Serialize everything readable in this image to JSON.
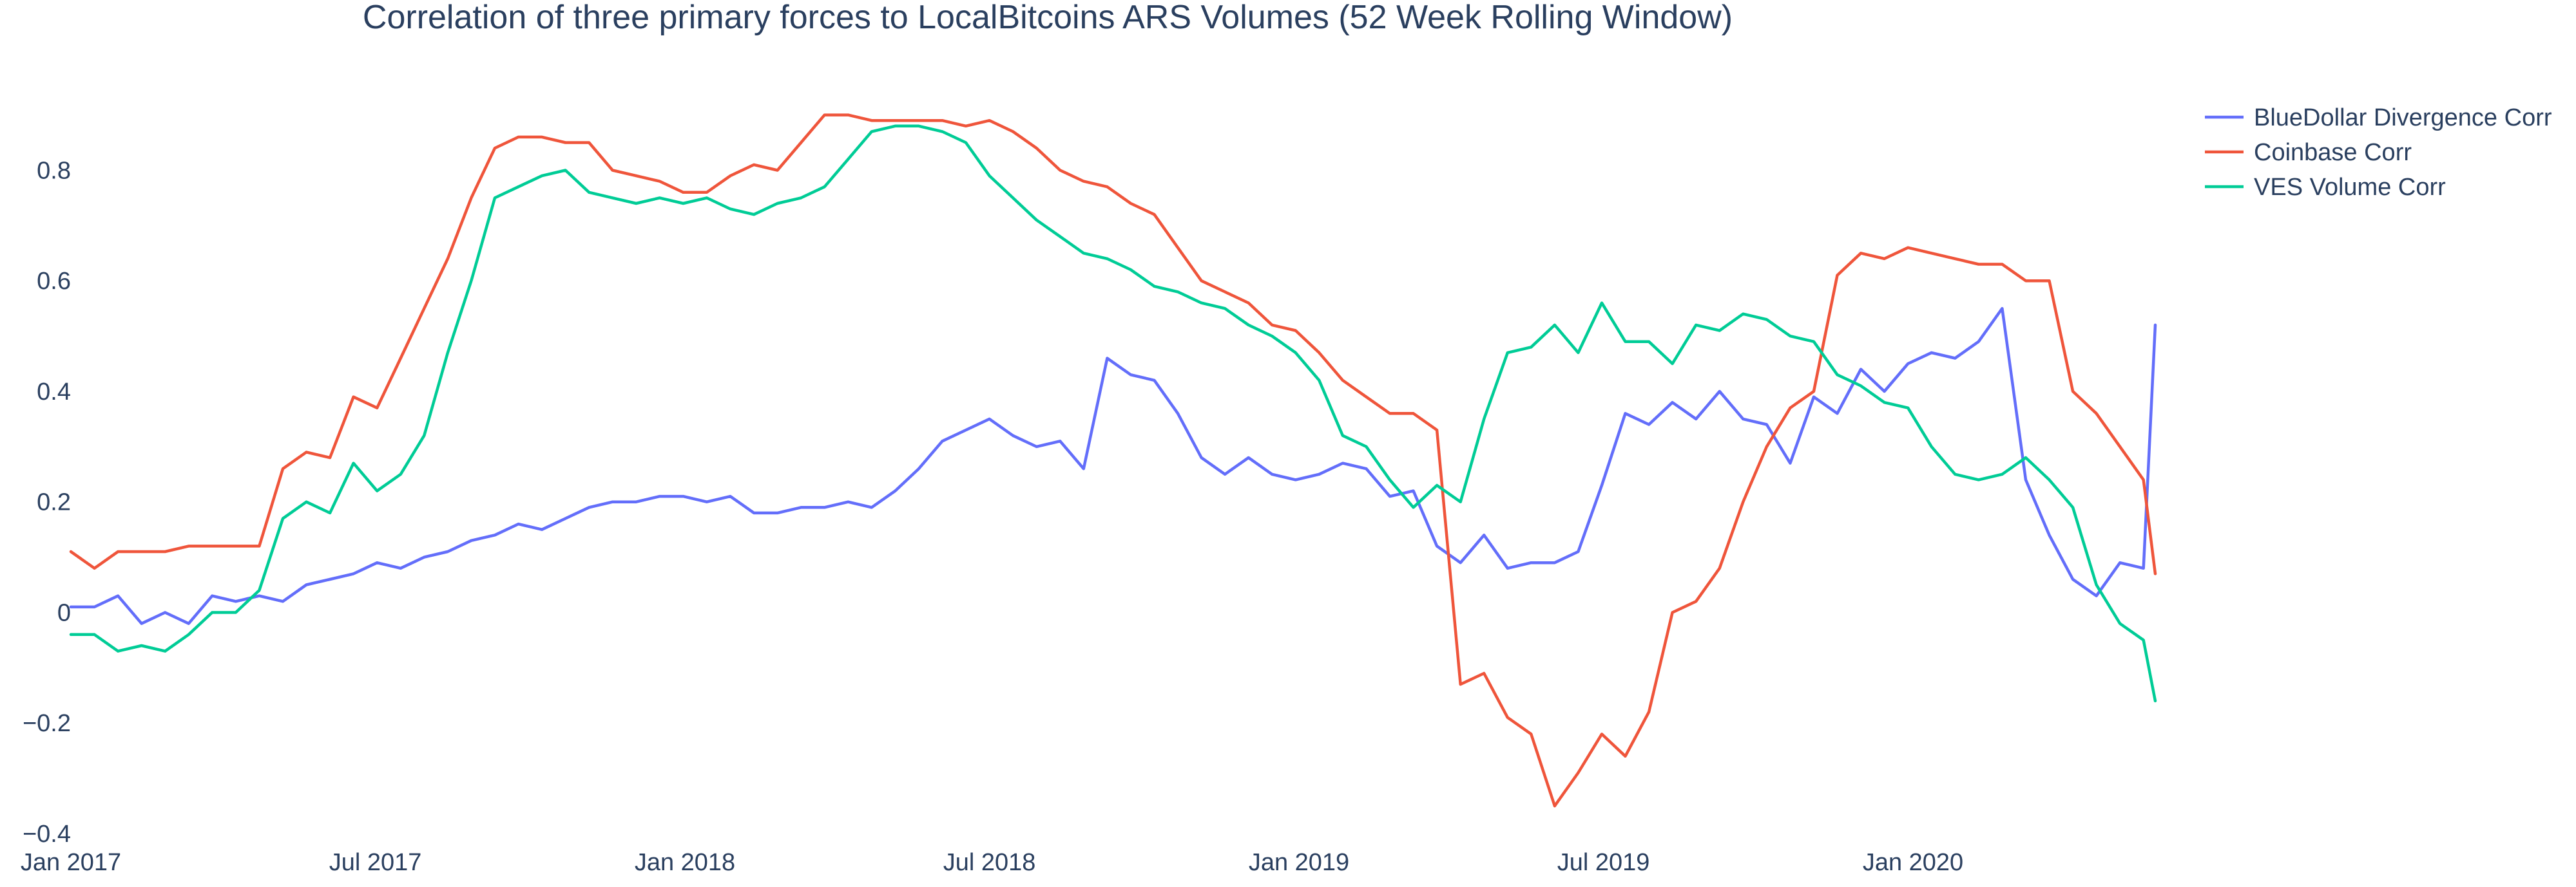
{
  "chart_data": {
    "type": "line",
    "title": "Correlation of three primary forces to LocalBitcoins ARS Volumes (52 Week Rolling Window)",
    "xlabel": "",
    "ylabel": "",
    "x_ticks": [
      {
        "label": "Jan 2017",
        "date": "2017-01-01"
      },
      {
        "label": "Jul 2017",
        "date": "2017-07-01"
      },
      {
        "label": "Jan 2018",
        "date": "2018-01-01"
      },
      {
        "label": "Jul 2018",
        "date": "2018-07-01"
      },
      {
        "label": "Jan 2019",
        "date": "2019-01-01"
      },
      {
        "label": "Jul 2019",
        "date": "2019-07-01"
      },
      {
        "label": "Jan 2020",
        "date": "2020-01-01"
      }
    ],
    "y_ticks": [
      {
        "label": "−0.4",
        "value": -0.4
      },
      {
        "label": "−0.2",
        "value": -0.2
      },
      {
        "label": "0",
        "value": 0
      },
      {
        "label": "0.2",
        "value": 0.2
      },
      {
        "label": "0.4",
        "value": 0.4
      },
      {
        "label": "0.6",
        "value": 0.6
      },
      {
        "label": "0.8",
        "value": 0.8
      }
    ],
    "xlim": [
      "2017-01-01",
      "2020-05-24"
    ],
    "ylim": [
      -0.4,
      0.91
    ],
    "grid": false,
    "legend": "top-right",
    "series": [
      {
        "name": "BlueDollar Divergence Corr",
        "color": "#636efa",
        "points": [
          [
            "2017-01-01",
            0.01
          ],
          [
            "2017-01-15",
            0.01
          ],
          [
            "2017-01-29",
            0.03
          ],
          [
            "2017-02-12",
            -0.02
          ],
          [
            "2017-02-26",
            0.0
          ],
          [
            "2017-03-12",
            -0.02
          ],
          [
            "2017-03-26",
            0.03
          ],
          [
            "2017-04-09",
            0.02
          ],
          [
            "2017-04-23",
            0.03
          ],
          [
            "2017-05-07",
            0.02
          ],
          [
            "2017-05-21",
            0.05
          ],
          [
            "2017-06-04",
            0.06
          ],
          [
            "2017-06-18",
            0.07
          ],
          [
            "2017-07-02",
            0.09
          ],
          [
            "2017-07-16",
            0.08
          ],
          [
            "2017-07-30",
            0.1
          ],
          [
            "2017-08-13",
            0.11
          ],
          [
            "2017-08-27",
            0.13
          ],
          [
            "2017-09-10",
            0.14
          ],
          [
            "2017-09-24",
            0.16
          ],
          [
            "2017-10-08",
            0.15
          ],
          [
            "2017-10-22",
            0.17
          ],
          [
            "2017-11-05",
            0.19
          ],
          [
            "2017-11-19",
            0.2
          ],
          [
            "2017-12-03",
            0.2
          ],
          [
            "2017-12-17",
            0.21
          ],
          [
            "2017-12-31",
            0.21
          ],
          [
            "2018-01-14",
            0.2
          ],
          [
            "2018-01-28",
            0.21
          ],
          [
            "2018-02-11",
            0.18
          ],
          [
            "2018-02-25",
            0.18
          ],
          [
            "2018-03-11",
            0.19
          ],
          [
            "2018-03-25",
            0.19
          ],
          [
            "2018-04-08",
            0.2
          ],
          [
            "2018-04-22",
            0.19
          ],
          [
            "2018-05-06",
            0.22
          ],
          [
            "2018-05-20",
            0.26
          ],
          [
            "2018-06-03",
            0.31
          ],
          [
            "2018-06-17",
            0.33
          ],
          [
            "2018-07-01",
            0.35
          ],
          [
            "2018-07-15",
            0.32
          ],
          [
            "2018-07-29",
            0.3
          ],
          [
            "2018-08-12",
            0.31
          ],
          [
            "2018-08-26",
            0.26
          ],
          [
            "2018-09-09",
            0.46
          ],
          [
            "2018-09-23",
            0.43
          ],
          [
            "2018-10-07",
            0.42
          ],
          [
            "2018-10-21",
            0.36
          ],
          [
            "2018-11-04",
            0.28
          ],
          [
            "2018-11-18",
            0.25
          ],
          [
            "2018-12-02",
            0.28
          ],
          [
            "2018-12-16",
            0.25
          ],
          [
            "2018-12-30",
            0.24
          ],
          [
            "2019-01-13",
            0.25
          ],
          [
            "2019-01-27",
            0.27
          ],
          [
            "2019-02-10",
            0.26
          ],
          [
            "2019-02-24",
            0.21
          ],
          [
            "2019-03-10",
            0.22
          ],
          [
            "2019-03-24",
            0.12
          ],
          [
            "2019-04-07",
            0.09
          ],
          [
            "2019-04-21",
            0.14
          ],
          [
            "2019-05-05",
            0.08
          ],
          [
            "2019-05-19",
            0.09
          ],
          [
            "2019-06-02",
            0.09
          ],
          [
            "2019-06-16",
            0.11
          ],
          [
            "2019-06-30",
            0.23
          ],
          [
            "2019-07-14",
            0.36
          ],
          [
            "2019-07-28",
            0.34
          ],
          [
            "2019-08-11",
            0.38
          ],
          [
            "2019-08-25",
            0.35
          ],
          [
            "2019-09-08",
            0.4
          ],
          [
            "2019-09-22",
            0.35
          ],
          [
            "2019-10-06",
            0.34
          ],
          [
            "2019-10-20",
            0.27
          ],
          [
            "2019-11-03",
            0.39
          ],
          [
            "2019-11-17",
            0.36
          ],
          [
            "2019-12-01",
            0.44
          ],
          [
            "2019-12-15",
            0.4
          ],
          [
            "2019-12-29",
            0.45
          ],
          [
            "2020-01-12",
            0.47
          ],
          [
            "2020-01-26",
            0.46
          ],
          [
            "2020-02-09",
            0.49
          ],
          [
            "2020-02-23",
            0.55
          ],
          [
            "2020-03-08",
            0.24
          ],
          [
            "2020-03-22",
            0.14
          ],
          [
            "2020-04-05",
            0.06
          ],
          [
            "2020-04-19",
            0.03
          ],
          [
            "2020-05-03",
            0.09
          ],
          [
            "2020-05-17",
            0.08
          ],
          [
            "2020-05-24",
            0.52
          ]
        ]
      },
      {
        "name": "Coinbase Corr",
        "color": "#ef553b",
        "points": [
          [
            "2017-01-01",
            0.11
          ],
          [
            "2017-01-15",
            0.08
          ],
          [
            "2017-01-29",
            0.11
          ],
          [
            "2017-02-26",
            0.11
          ],
          [
            "2017-03-12",
            0.12
          ],
          [
            "2017-04-09",
            0.12
          ],
          [
            "2017-04-23",
            0.12
          ],
          [
            "2017-05-07",
            0.26
          ],
          [
            "2017-05-21",
            0.29
          ],
          [
            "2017-06-04",
            0.28
          ],
          [
            "2017-06-18",
            0.39
          ],
          [
            "2017-07-02",
            0.37
          ],
          [
            "2017-07-16",
            0.46
          ],
          [
            "2017-07-30",
            0.55
          ],
          [
            "2017-08-13",
            0.64
          ],
          [
            "2017-08-27",
            0.75
          ],
          [
            "2017-09-10",
            0.84
          ],
          [
            "2017-09-24",
            0.86
          ],
          [
            "2017-10-08",
            0.86
          ],
          [
            "2017-10-22",
            0.85
          ],
          [
            "2017-11-05",
            0.85
          ],
          [
            "2017-11-19",
            0.8
          ],
          [
            "2017-12-03",
            0.79
          ],
          [
            "2017-12-17",
            0.78
          ],
          [
            "2017-12-31",
            0.76
          ],
          [
            "2018-01-14",
            0.76
          ],
          [
            "2018-01-28",
            0.79
          ],
          [
            "2018-02-11",
            0.81
          ],
          [
            "2018-02-25",
            0.8
          ],
          [
            "2018-03-11",
            0.85
          ],
          [
            "2018-03-25",
            0.9
          ],
          [
            "2018-04-08",
            0.9
          ],
          [
            "2018-04-22",
            0.89
          ],
          [
            "2018-05-06",
            0.89
          ],
          [
            "2018-05-20",
            0.89
          ],
          [
            "2018-06-03",
            0.89
          ],
          [
            "2018-06-17",
            0.88
          ],
          [
            "2018-07-01",
            0.89
          ],
          [
            "2018-07-15",
            0.87
          ],
          [
            "2018-07-29",
            0.84
          ],
          [
            "2018-08-12",
            0.8
          ],
          [
            "2018-08-26",
            0.78
          ],
          [
            "2018-09-09",
            0.77
          ],
          [
            "2018-09-23",
            0.74
          ],
          [
            "2018-10-07",
            0.72
          ],
          [
            "2018-10-21",
            0.66
          ],
          [
            "2018-11-04",
            0.6
          ],
          [
            "2018-11-18",
            0.58
          ],
          [
            "2018-12-02",
            0.56
          ],
          [
            "2018-12-16",
            0.52
          ],
          [
            "2018-12-30",
            0.51
          ],
          [
            "2019-01-13",
            0.47
          ],
          [
            "2019-01-27",
            0.42
          ],
          [
            "2019-02-10",
            0.39
          ],
          [
            "2019-02-24",
            0.36
          ],
          [
            "2019-03-10",
            0.36
          ],
          [
            "2019-03-24",
            0.33
          ],
          [
            "2019-04-07",
            -0.13
          ],
          [
            "2019-04-21",
            -0.11
          ],
          [
            "2019-05-05",
            -0.19
          ],
          [
            "2019-05-19",
            -0.22
          ],
          [
            "2019-06-02",
            -0.35
          ],
          [
            "2019-06-16",
            -0.29
          ],
          [
            "2019-06-30",
            -0.22
          ],
          [
            "2019-07-14",
            -0.26
          ],
          [
            "2019-07-28",
            -0.18
          ],
          [
            "2019-08-11",
            0.0
          ],
          [
            "2019-08-25",
            0.02
          ],
          [
            "2019-09-08",
            0.08
          ],
          [
            "2019-09-22",
            0.2
          ],
          [
            "2019-10-06",
            0.3
          ],
          [
            "2019-10-20",
            0.37
          ],
          [
            "2019-11-03",
            0.4
          ],
          [
            "2019-11-17",
            0.61
          ],
          [
            "2019-12-01",
            0.65
          ],
          [
            "2019-12-15",
            0.64
          ],
          [
            "2019-12-29",
            0.66
          ],
          [
            "2020-01-12",
            0.65
          ],
          [
            "2020-01-26",
            0.64
          ],
          [
            "2020-02-09",
            0.63
          ],
          [
            "2020-02-23",
            0.63
          ],
          [
            "2020-03-08",
            0.6
          ],
          [
            "2020-03-22",
            0.6
          ],
          [
            "2020-04-05",
            0.4
          ],
          [
            "2020-04-19",
            0.36
          ],
          [
            "2020-05-03",
            0.3
          ],
          [
            "2020-05-17",
            0.24
          ],
          [
            "2020-05-24",
            0.07
          ]
        ]
      },
      {
        "name": "VES Volume Corr",
        "color": "#00cc96",
        "points": [
          [
            "2017-01-01",
            -0.04
          ],
          [
            "2017-01-15",
            -0.04
          ],
          [
            "2017-01-29",
            -0.07
          ],
          [
            "2017-02-12",
            -0.06
          ],
          [
            "2017-02-26",
            -0.07
          ],
          [
            "2017-03-12",
            -0.04
          ],
          [
            "2017-03-26",
            0.0
          ],
          [
            "2017-04-09",
            0.0
          ],
          [
            "2017-04-23",
            0.04
          ],
          [
            "2017-05-07",
            0.17
          ],
          [
            "2017-05-21",
            0.2
          ],
          [
            "2017-06-04",
            0.18
          ],
          [
            "2017-06-18",
            0.27
          ],
          [
            "2017-07-02",
            0.22
          ],
          [
            "2017-07-16",
            0.25
          ],
          [
            "2017-07-30",
            0.32
          ],
          [
            "2017-08-13",
            0.47
          ],
          [
            "2017-08-27",
            0.6
          ],
          [
            "2017-09-10",
            0.75
          ],
          [
            "2017-09-24",
            0.77
          ],
          [
            "2017-10-08",
            0.79
          ],
          [
            "2017-10-22",
            0.8
          ],
          [
            "2017-11-05",
            0.76
          ],
          [
            "2017-11-19",
            0.75
          ],
          [
            "2017-12-03",
            0.74
          ],
          [
            "2017-12-17",
            0.75
          ],
          [
            "2017-12-31",
            0.74
          ],
          [
            "2018-01-14",
            0.75
          ],
          [
            "2018-01-28",
            0.73
          ],
          [
            "2018-02-11",
            0.72
          ],
          [
            "2018-02-25",
            0.74
          ],
          [
            "2018-03-11",
            0.75
          ],
          [
            "2018-03-25",
            0.77
          ],
          [
            "2018-04-08",
            0.82
          ],
          [
            "2018-04-22",
            0.87
          ],
          [
            "2018-05-06",
            0.88
          ],
          [
            "2018-05-20",
            0.88
          ],
          [
            "2018-06-03",
            0.87
          ],
          [
            "2018-06-17",
            0.85
          ],
          [
            "2018-07-01",
            0.79
          ],
          [
            "2018-07-15",
            0.75
          ],
          [
            "2018-07-29",
            0.71
          ],
          [
            "2018-08-12",
            0.68
          ],
          [
            "2018-08-26",
            0.65
          ],
          [
            "2018-09-09",
            0.64
          ],
          [
            "2018-09-23",
            0.62
          ],
          [
            "2018-10-07",
            0.59
          ],
          [
            "2018-10-21",
            0.58
          ],
          [
            "2018-11-04",
            0.56
          ],
          [
            "2018-11-18",
            0.55
          ],
          [
            "2018-12-02",
            0.52
          ],
          [
            "2018-12-16",
            0.5
          ],
          [
            "2018-12-30",
            0.47
          ],
          [
            "2019-01-13",
            0.42
          ],
          [
            "2019-01-27",
            0.32
          ],
          [
            "2019-02-10",
            0.3
          ],
          [
            "2019-02-24",
            0.24
          ],
          [
            "2019-03-10",
            0.19
          ],
          [
            "2019-03-24",
            0.23
          ],
          [
            "2019-04-07",
            0.2
          ],
          [
            "2019-04-21",
            0.35
          ],
          [
            "2019-05-05",
            0.47
          ],
          [
            "2019-05-19",
            0.48
          ],
          [
            "2019-06-02",
            0.52
          ],
          [
            "2019-06-16",
            0.47
          ],
          [
            "2019-06-30",
            0.56
          ],
          [
            "2019-07-14",
            0.49
          ],
          [
            "2019-07-28",
            0.49
          ],
          [
            "2019-08-11",
            0.45
          ],
          [
            "2019-08-25",
            0.52
          ],
          [
            "2019-09-08",
            0.51
          ],
          [
            "2019-09-22",
            0.54
          ],
          [
            "2019-10-06",
            0.53
          ],
          [
            "2019-10-20",
            0.5
          ],
          [
            "2019-11-03",
            0.49
          ],
          [
            "2019-11-17",
            0.43
          ],
          [
            "2019-12-01",
            0.41
          ],
          [
            "2019-12-15",
            0.38
          ],
          [
            "2019-12-29",
            0.37
          ],
          [
            "2020-01-12",
            0.3
          ],
          [
            "2020-01-26",
            0.25
          ],
          [
            "2020-02-09",
            0.24
          ],
          [
            "2020-02-23",
            0.25
          ],
          [
            "2020-03-08",
            0.28
          ],
          [
            "2020-03-22",
            0.24
          ],
          [
            "2020-04-05",
            0.19
          ],
          [
            "2020-04-19",
            0.05
          ],
          [
            "2020-05-03",
            -0.02
          ],
          [
            "2020-05-17",
            -0.05
          ],
          [
            "2020-05-24",
            -0.16
          ]
        ]
      }
    ]
  }
}
